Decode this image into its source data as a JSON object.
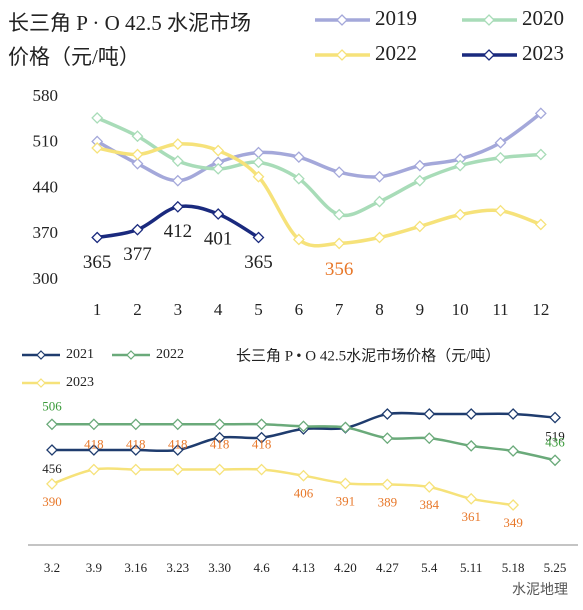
{
  "chart_data": [
    {
      "type": "line",
      "title": "长三角 P · O 42.5 水泥市场价格（元/吨）",
      "categories": [
        "1",
        "2",
        "3",
        "4",
        "5",
        "6",
        "7",
        "8",
        "9",
        "10",
        "11",
        "12"
      ],
      "ylim": [
        300,
        580
      ],
      "yticks": [
        300,
        370,
        440,
        510,
        580
      ],
      "legend": "top-right",
      "series": [
        {
          "name": "2019",
          "color": "#a4a8da",
          "values": [
            512,
            478,
            452,
            480,
            495,
            488,
            465,
            458,
            475,
            485,
            510,
            555
          ]
        },
        {
          "name": "2020",
          "color": "#a8dcb8",
          "values": [
            548,
            520,
            482,
            470,
            480,
            455,
            400,
            420,
            452,
            475,
            487,
            492
          ]
        },
        {
          "name": "2022",
          "color": "#f6e27a",
          "label_color": "#e8782a",
          "values": [
            502,
            492,
            508,
            498,
            458,
            362,
            356,
            365,
            382,
            400,
            406,
            385
          ],
          "value_labels": [
            null,
            null,
            null,
            null,
            null,
            null,
            "356",
            null,
            null,
            null,
            null,
            null
          ]
        },
        {
          "name": "2023",
          "color": "#1a2a7e",
          "label_color": "#222",
          "values": [
            365,
            377,
            412,
            401,
            365,
            null,
            null,
            null,
            null,
            null,
            null,
            null
          ],
          "value_labels": [
            "365",
            "377",
            "412",
            "401",
            "365",
            null,
            null,
            null,
            null,
            null,
            null,
            null
          ]
        }
      ]
    },
    {
      "type": "line",
      "title": "长三角 P • O 42.5水泥市场价格（元/吨）",
      "categories": [
        "3.2",
        "3.9",
        "3.16",
        "3.23",
        "3.30",
        "4.6",
        "4.13",
        "4.20",
        "4.27",
        "5.4",
        "5.11",
        "5.18",
        "5.25"
      ],
      "legend": "top-left",
      "watermark": "水泥地理",
      "series": [
        {
          "name": "2021",
          "color": "#1f3c6e",
          "label_color": "#222",
          "values": [
            456,
            456,
            456,
            456,
            480,
            480,
            497,
            499,
            526,
            526,
            526,
            526,
            519
          ],
          "value_labels": [
            "456",
            null,
            null,
            null,
            null,
            null,
            null,
            null,
            null,
            null,
            null,
            null,
            "519"
          ]
        },
        {
          "name": "2022",
          "color": "#6aaa7a",
          "label_color": "#3a9a3a",
          "values": [
            506,
            506,
            506,
            506,
            506,
            506,
            502,
            500,
            479,
            479,
            464,
            454,
            436
          ],
          "value_labels": [
            "506",
            null,
            null,
            null,
            null,
            null,
            null,
            null,
            null,
            null,
            null,
            null,
            "436"
          ]
        },
        {
          "name": "2023",
          "color": "#f6e27a",
          "label_color": "#e8782a",
          "values": [
            390,
            418,
            418,
            418,
            418,
            418,
            406,
            391,
            389,
            384,
            361,
            349,
            null
          ],
          "value_labels": [
            "390",
            "418",
            "418",
            "418",
            "418",
            "418",
            "406",
            "391",
            "389",
            "384",
            "361",
            "349",
            null
          ]
        }
      ]
    }
  ]
}
